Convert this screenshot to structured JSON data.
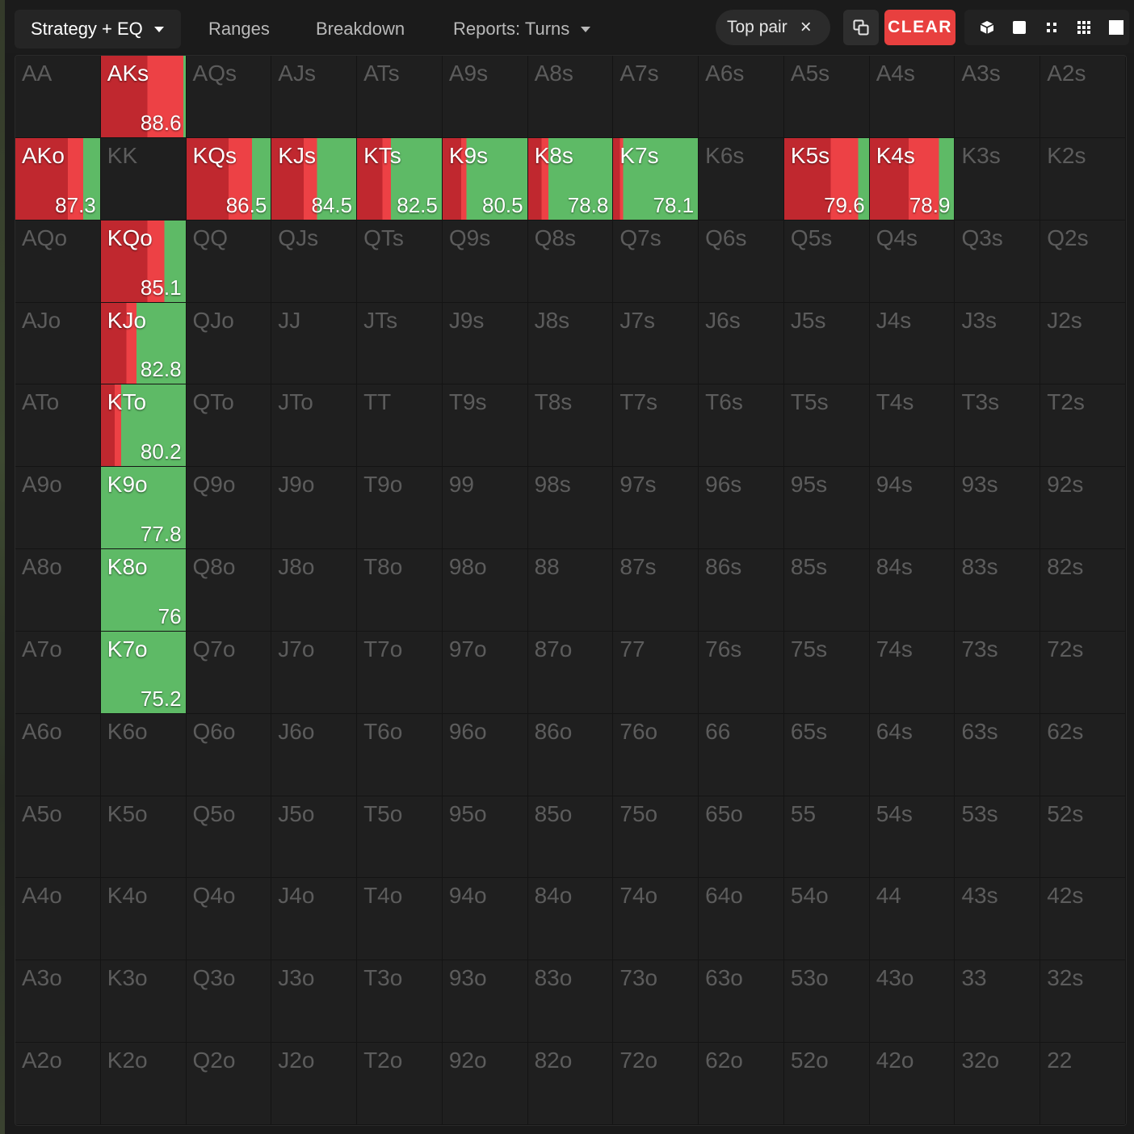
{
  "toolbar": {
    "tabs": [
      {
        "label": "Strategy + EQ",
        "dropdown": true,
        "active": true
      },
      {
        "label": "Ranges",
        "dropdown": false,
        "active": false
      },
      {
        "label": "Breakdown",
        "dropdown": false,
        "active": false
      },
      {
        "label": "Reports: Turns",
        "dropdown": true,
        "active": false
      }
    ],
    "filter_chip": {
      "label": "Top pair",
      "close_glyph": "×"
    },
    "clear_label": "CLEAR",
    "icons": [
      "copy-icon",
      "cube-icon",
      "square-icon",
      "compact-grid-icon",
      "grid-icon",
      "full-square-icon"
    ]
  },
  "colors": {
    "bet": "#c0282f",
    "bet_light": "#ed4145",
    "check": "#5eba66",
    "cell_bg": "#1f1f1f",
    "accent": "#e8403f"
  },
  "grid": {
    "rows": [
      [
        "AA",
        "AKs",
        "AQs",
        "AJs",
        "ATs",
        "A9s",
        "A8s",
        "A7s",
        "A6s",
        "A5s",
        "A4s",
        "A3s",
        "A2s"
      ],
      [
        "AKo",
        "KK",
        "KQs",
        "KJs",
        "KTs",
        "K9s",
        "K8s",
        "K7s",
        "K6s",
        "K5s",
        "K4s",
        "K3s",
        "K2s"
      ],
      [
        "AQo",
        "KQo",
        "QQ",
        "QJs",
        "QTs",
        "Q9s",
        "Q8s",
        "Q7s",
        "Q6s",
        "Q5s",
        "Q4s",
        "Q3s",
        "Q2s"
      ],
      [
        "AJo",
        "KJo",
        "QJo",
        "JJ",
        "JTs",
        "J9s",
        "J8s",
        "J7s",
        "J6s",
        "J5s",
        "J4s",
        "J3s",
        "J2s"
      ],
      [
        "ATo",
        "KTo",
        "QTo",
        "JTo",
        "TT",
        "T9s",
        "T8s",
        "T7s",
        "T6s",
        "T5s",
        "T4s",
        "T3s",
        "T2s"
      ],
      [
        "A9o",
        "K9o",
        "Q9o",
        "J9o",
        "T9o",
        "99",
        "98s",
        "97s",
        "96s",
        "95s",
        "94s",
        "93s",
        "92s"
      ],
      [
        "A8o",
        "K8o",
        "Q8o",
        "J8o",
        "T8o",
        "98o",
        "88",
        "87s",
        "86s",
        "85s",
        "84s",
        "83s",
        "82s"
      ],
      [
        "A7o",
        "K7o",
        "Q7o",
        "J7o",
        "T7o",
        "97o",
        "87o",
        "77",
        "76s",
        "75s",
        "74s",
        "73s",
        "72s"
      ],
      [
        "A6o",
        "K6o",
        "Q6o",
        "J6o",
        "T6o",
        "96o",
        "86o",
        "76o",
        "66",
        "65s",
        "64s",
        "63s",
        "62s"
      ],
      [
        "A5o",
        "K5o",
        "Q5o",
        "J5o",
        "T5o",
        "95o",
        "85o",
        "75o",
        "65o",
        "55",
        "54s",
        "53s",
        "52s"
      ],
      [
        "A4o",
        "K4o",
        "Q4o",
        "J4o",
        "T4o",
        "94o",
        "84o",
        "74o",
        "64o",
        "54o",
        "44",
        "43s",
        "42s"
      ],
      [
        "A3o",
        "K3o",
        "Q3o",
        "J3o",
        "T3o",
        "93o",
        "83o",
        "73o",
        "63o",
        "53o",
        "43o",
        "33",
        "32s"
      ],
      [
        "A2o",
        "K2o",
        "Q2o",
        "J2o",
        "T2o",
        "92o",
        "82o",
        "72o",
        "62o",
        "52o",
        "42o",
        "32o",
        "22"
      ]
    ],
    "active": {
      "AKs": {
        "eq": "88.6",
        "mix": [
          0.55,
          0.42,
          0.03
        ]
      },
      "AKo": {
        "eq": "87.3",
        "mix": [
          0.62,
          0.18,
          0.2
        ]
      },
      "KQs": {
        "eq": "86.5",
        "mix": [
          0.5,
          0.28,
          0.22
        ]
      },
      "KJs": {
        "eq": "84.5",
        "mix": [
          0.38,
          0.16,
          0.46
        ]
      },
      "KTs": {
        "eq": "82.5",
        "mix": [
          0.3,
          0.1,
          0.6
        ]
      },
      "K9s": {
        "eq": "80.5",
        "mix": [
          0.22,
          0.06,
          0.72
        ]
      },
      "K8s": {
        "eq": "78.8",
        "mix": [
          0.16,
          0.08,
          0.76
        ]
      },
      "K7s": {
        "eq": "78.1",
        "mix": [
          0.08,
          0.04,
          0.88
        ]
      },
      "K5s": {
        "eq": "79.6",
        "mix": [
          0.55,
          0.32,
          0.13
        ]
      },
      "K4s": {
        "eq": "78.9",
        "mix": [
          0.46,
          0.36,
          0.18
        ]
      },
      "KQo": {
        "eq": "85.1",
        "mix": [
          0.55,
          0.2,
          0.25
        ]
      },
      "KJo": {
        "eq": "82.8",
        "mix": [
          0.3,
          0.12,
          0.58
        ]
      },
      "KTo": {
        "eq": "80.2",
        "mix": [
          0.16,
          0.08,
          0.76
        ]
      },
      "K9o": {
        "eq": "77.8",
        "mix": [
          0.0,
          0.0,
          1.0
        ]
      },
      "K8o": {
        "eq": "76",
        "mix": [
          0.0,
          0.0,
          1.0
        ]
      },
      "K7o": {
        "eq": "75.2",
        "mix": [
          0.0,
          0.0,
          1.0
        ]
      }
    }
  }
}
